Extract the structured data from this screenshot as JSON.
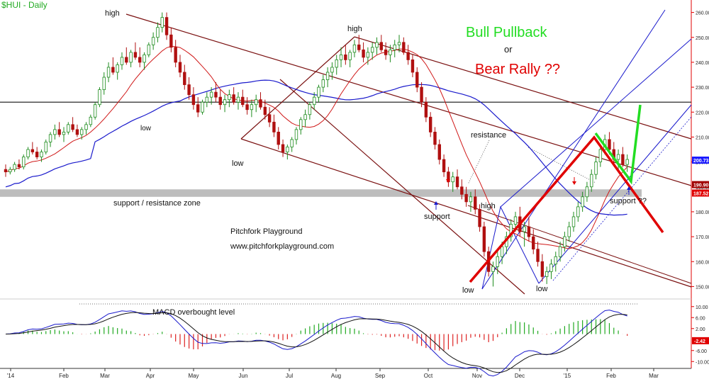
{
  "chart_data": {
    "type": "candlestick",
    "title": "$HUI - Daily",
    "x_ticks": [
      "'14",
      "Feb",
      "Mar",
      "Apr",
      "May",
      "Jun",
      "Jul",
      "Aug",
      "Sep",
      "Oct",
      "Nov",
      "Dec",
      "'15",
      "Feb",
      "Mar"
    ],
    "y_ticks": [
      "260.00",
      "250.00",
      "240.00",
      "230.00",
      "220.00",
      "210.00",
      "200.00",
      "190.00",
      "180.00",
      "170.00",
      "160.00",
      "150.00"
    ],
    "ylim": [
      145,
      265
    ],
    "macd_ticks": [
      "10.00",
      "6.00",
      "2.00",
      "-6.00",
      "-10.00"
    ],
    "price_labels": [
      {
        "value": 200.73,
        "text": "200.73",
        "color": "#1a1aff"
      },
      {
        "value": 190.9,
        "text": "190.90",
        "color": "#a00000"
      },
      {
        "value": 187.52,
        "text": "187.52",
        "color": "#e00000"
      }
    ],
    "macd_label": {
      "value": -2.42,
      "text": "-2.42",
      "color": "#e00000"
    },
    "resistance_line": 224,
    "support_zone": [
      186,
      189
    ],
    "annotations": {
      "high1": "high",
      "low1": "low",
      "low2": "low",
      "high2": "high",
      "high3": "high",
      "low3": "low",
      "low4": "low",
      "zone": "support / resistance zone",
      "resistance": "resistance",
      "support": "support",
      "support2": "support ??",
      "brand": "Pitchfork Playground",
      "url": "www.pitchforkplayground.com",
      "macd": "MACD overbought level",
      "bull": "Bull Pullback",
      "or": "or",
      "bear": "Bear Rally ??"
    },
    "series": [
      {
        "name": "",
        "values": [
          [
            197,
            199,
            194,
            196
          ],
          [
            196,
            198,
            195,
            197
          ],
          [
            197,
            200,
            196,
            199
          ],
          [
            199,
            201,
            197,
            198
          ],
          [
            198,
            203,
            197,
            202
          ],
          [
            202,
            206,
            201,
            205
          ],
          [
            205,
            208,
            203,
            204
          ],
          [
            204,
            206,
            201,
            202
          ],
          [
            202,
            205,
            200,
            204
          ],
          [
            204,
            209,
            203,
            208
          ],
          [
            208,
            212,
            206,
            211
          ],
          [
            211,
            215,
            209,
            213
          ],
          [
            213,
            216,
            210,
            211
          ],
          [
            211,
            214,
            208,
            212
          ],
          [
            212,
            216,
            211,
            215
          ],
          [
            215,
            218,
            212,
            213
          ],
          [
            213,
            215,
            210,
            211
          ],
          [
            211,
            214,
            209,
            213
          ],
          [
            213,
            216,
            211,
            215
          ],
          [
            215,
            219,
            214,
            218
          ],
          [
            218,
            224,
            217,
            223
          ],
          [
            223,
            230,
            222,
            229
          ],
          [
            229,
            236,
            227,
            234
          ],
          [
            234,
            240,
            232,
            238
          ],
          [
            238,
            242,
            235,
            236
          ],
          [
            236,
            240,
            233,
            239
          ],
          [
            239,
            244,
            237,
            242
          ],
          [
            242,
            246,
            239,
            240
          ],
          [
            240,
            245,
            238,
            244
          ],
          [
            244,
            248,
            241,
            242
          ],
          [
            242,
            246,
            238,
            240
          ],
          [
            240,
            244,
            237,
            243
          ],
          [
            243,
            248,
            242,
            247
          ],
          [
            247,
            252,
            245,
            250
          ],
          [
            250,
            256,
            248,
            254
          ],
          [
            254,
            260,
            252,
            258
          ],
          [
            258,
            260,
            249,
            251
          ],
          [
            251,
            254,
            244,
            246
          ],
          [
            246,
            249,
            238,
            240
          ],
          [
            240,
            243,
            234,
            236
          ],
          [
            236,
            239,
            229,
            231
          ],
          [
            231,
            234,
            225,
            227
          ],
          [
            227,
            230,
            221,
            223
          ],
          [
            223,
            226,
            218,
            220
          ],
          [
            220,
            225,
            219,
            224
          ],
          [
            224,
            228,
            222,
            226
          ],
          [
            226,
            230,
            223,
            228
          ],
          [
            228,
            232,
            224,
            226
          ],
          [
            226,
            229,
            221,
            223
          ],
          [
            223,
            227,
            220,
            225
          ],
          [
            225,
            229,
            222,
            227
          ],
          [
            227,
            230,
            223,
            224
          ],
          [
            224,
            228,
            221,
            226
          ],
          [
            226,
            229,
            222,
            223
          ],
          [
            223,
            226,
            219,
            221
          ],
          [
            221,
            225,
            218,
            223
          ],
          [
            223,
            227,
            220,
            225
          ],
          [
            225,
            228,
            221,
            222
          ],
          [
            222,
            225,
            217,
            219
          ],
          [
            219,
            222,
            214,
            216
          ],
          [
            216,
            219,
            210,
            212
          ],
          [
            212,
            214,
            205,
            207
          ],
          [
            207,
            209,
            202,
            204
          ],
          [
            204,
            207,
            201,
            206
          ],
          [
            206,
            210,
            204,
            209
          ],
          [
            209,
            214,
            207,
            213
          ],
          [
            213,
            218,
            211,
            217
          ],
          [
            217,
            221,
            214,
            219
          ],
          [
            219,
            224,
            217,
            223
          ],
          [
            223,
            228,
            221,
            226
          ],
          [
            226,
            231,
            224,
            230
          ],
          [
            230,
            235,
            228,
            233
          ],
          [
            233,
            238,
            230,
            236
          ],
          [
            236,
            240,
            233,
            238
          ],
          [
            238,
            243,
            235,
            241
          ],
          [
            241,
            246,
            238,
            243
          ],
          [
            243,
            247,
            239,
            241
          ],
          [
            241,
            245,
            238,
            244
          ],
          [
            244,
            249,
            242,
            247
          ],
          [
            247,
            251,
            244,
            245
          ],
          [
            245,
            248,
            240,
            242
          ],
          [
            242,
            246,
            239,
            244
          ],
          [
            244,
            248,
            241,
            246
          ],
          [
            246,
            250,
            243,
            248
          ],
          [
            248,
            251,
            244,
            245
          ],
          [
            245,
            248,
            241,
            243
          ],
          [
            243,
            247,
            240,
            245
          ],
          [
            245,
            249,
            242,
            247
          ],
          [
            247,
            251,
            244,
            248
          ],
          [
            248,
            250,
            243,
            244
          ],
          [
            244,
            247,
            239,
            241
          ],
          [
            241,
            243,
            234,
            236
          ],
          [
            236,
            238,
            228,
            230
          ],
          [
            230,
            232,
            222,
            224
          ],
          [
            224,
            226,
            216,
            218
          ],
          [
            218,
            220,
            210,
            212
          ],
          [
            212,
            214,
            205,
            207
          ],
          [
            207,
            209,
            199,
            201
          ],
          [
            201,
            203,
            194,
            196
          ],
          [
            196,
            198,
            190,
            192
          ],
          [
            192,
            196,
            188,
            194
          ],
          [
            194,
            197,
            189,
            190
          ],
          [
            190,
            193,
            185,
            187
          ],
          [
            187,
            190,
            182,
            184
          ],
          [
            184,
            188,
            180,
            186
          ],
          [
            186,
            189,
            179,
            181
          ],
          [
            181,
            183,
            172,
            174
          ],
          [
            174,
            176,
            162,
            164
          ],
          [
            164,
            166,
            154,
            156
          ],
          [
            156,
            160,
            150,
            158
          ],
          [
            158,
            164,
            155,
            162
          ],
          [
            162,
            168,
            159,
            166
          ],
          [
            166,
            172,
            163,
            170
          ],
          [
            170,
            177,
            168,
            175
          ],
          [
            175,
            180,
            172,
            178
          ],
          [
            178,
            182,
            170,
            172
          ],
          [
            172,
            176,
            166,
            174
          ],
          [
            174,
            178,
            168,
            170
          ],
          [
            170,
            173,
            163,
            165
          ],
          [
            165,
            168,
            158,
            160
          ],
          [
            160,
            163,
            152,
            154
          ],
          [
            154,
            158,
            151,
            156
          ],
          [
            156,
            161,
            153,
            159
          ],
          [
            159,
            164,
            156,
            162
          ],
          [
            162,
            168,
            160,
            166
          ],
          [
            166,
            172,
            164,
            170
          ],
          [
            170,
            176,
            168,
            174
          ],
          [
            174,
            180,
            172,
            178
          ],
          [
            178,
            184,
            176,
            182
          ],
          [
            182,
            188,
            180,
            186
          ],
          [
            186,
            192,
            184,
            190
          ],
          [
            190,
            197,
            188,
            195
          ],
          [
            195,
            202,
            193,
            200
          ],
          [
            200,
            207,
            198,
            205
          ],
          [
            205,
            211,
            203,
            209
          ],
          [
            209,
            212,
            203,
            205
          ],
          [
            205,
            208,
            199,
            201
          ],
          [
            201,
            205,
            197,
            203
          ],
          [
            203,
            206,
            198,
            199
          ],
          [
            199,
            203,
            196,
            201
          ]
        ]
      }
    ]
  }
}
